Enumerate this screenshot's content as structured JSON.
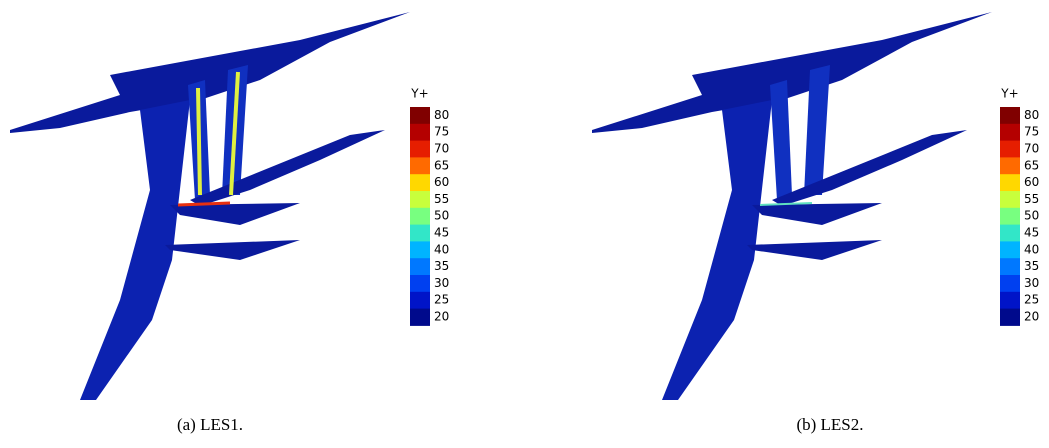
{
  "panels": [
    {
      "caption": "(a) LES1.",
      "colorbar": {
        "title": "Y+",
        "labels": [
          80,
          75,
          70,
          65,
          60,
          55,
          50,
          45,
          40,
          35,
          30,
          25,
          20
        ],
        "colors": [
          "#800000",
          "#b40000",
          "#e61e00",
          "#ff6a00",
          "#ffd800",
          "#c8ff3c",
          "#78ff80",
          "#32e6c8",
          "#00b4ff",
          "#0078ff",
          "#0040f0",
          "#0014c8",
          "#000a8c"
        ]
      }
    },
    {
      "caption": "(b) LES2.",
      "colorbar": {
        "title": "Y+",
        "labels": [
          80,
          75,
          70,
          65,
          60,
          55,
          50,
          45,
          40,
          35,
          30,
          25,
          20
        ],
        "colors": [
          "#800000",
          "#b40000",
          "#e61e00",
          "#ff6a00",
          "#ffd800",
          "#c8ff3c",
          "#78ff80",
          "#32e6c8",
          "#00b4ff",
          "#0078ff",
          "#0040f0",
          "#0014c8",
          "#000a8c"
        ]
      }
    }
  ]
}
